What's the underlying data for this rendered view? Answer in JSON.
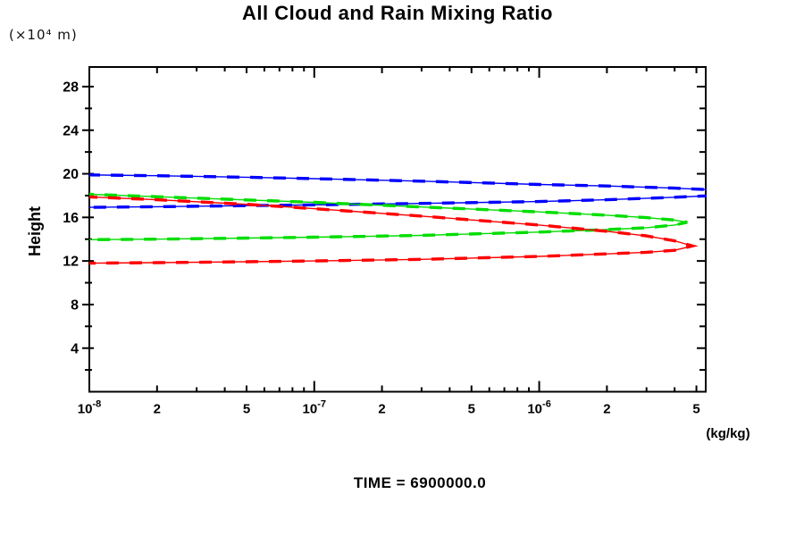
{
  "title": "All Cloud and Rain Mixing Ratio",
  "labels": {
    "y_axis_unit": "(×10⁴  m)",
    "y_axis": "Height",
    "x_axis_unit": "(kg/kg)",
    "time_caption": "TIME = 6900000.0"
  },
  "colors": {
    "background": "#ffffff",
    "axis": "#000000",
    "text": "#000000",
    "blue_series": "#0000ff",
    "green_series": "#00dd00",
    "red_series": "#ff0000"
  },
  "chart_data": {
    "type": "line",
    "title": "All Cloud and Rain Mixing Ratio",
    "xlabel": "(kg/kg)",
    "ylabel": "Height (×10⁴ m)",
    "x_scale": "log",
    "y_scale": "linear",
    "xlim": [
      1e-08,
      5.5e-06
    ],
    "ylim": [
      0,
      29.8
    ],
    "grid": false,
    "legend": "none",
    "annotation": "TIME = 6900000.0",
    "x_major_ticks": [
      {
        "v": 1e-08,
        "label": "10^-8"
      },
      {
        "v": 2e-08,
        "label": "2"
      },
      {
        "v": 5e-08,
        "label": "5"
      },
      {
        "v": 1e-07,
        "label": "10^-7"
      },
      {
        "v": 2e-07,
        "label": "2"
      },
      {
        "v": 5e-07,
        "label": "5"
      },
      {
        "v": 1e-06,
        "label": "10^-6"
      },
      {
        "v": 2e-06,
        "label": "2"
      },
      {
        "v": 5e-06,
        "label": "5"
      }
    ],
    "x_minor_ticks": [
      3e-08,
      4e-08,
      6e-08,
      7e-08,
      8e-08,
      9e-08,
      3e-07,
      4e-07,
      6e-07,
      7e-07,
      8e-07,
      9e-07,
      3e-06,
      4e-06
    ],
    "y_major_ticks": [
      {
        "v": 4,
        "label": "4"
      },
      {
        "v": 8,
        "label": "8"
      },
      {
        "v": 12,
        "label": "12"
      },
      {
        "v": 16,
        "label": "16"
      },
      {
        "v": 20,
        "label": "20"
      },
      {
        "v": 24,
        "label": "24"
      },
      {
        "v": 28,
        "label": "28"
      }
    ],
    "y_minor_ticks": [
      2,
      6,
      10,
      14,
      18,
      22,
      26
    ],
    "series": [
      {
        "name": "blue-profile",
        "color": "#0000ff",
        "points": [
          [
            1e-08,
            19.9
          ],
          [
            2e-08,
            19.82
          ],
          [
            5e-08,
            19.68
          ],
          [
            1e-07,
            19.55
          ],
          [
            3e-07,
            19.32
          ],
          [
            1e-06,
            19.02
          ],
          [
            2e-06,
            18.88
          ],
          [
            4e-06,
            18.68
          ],
          [
            5.5e-06,
            18.55
          ],
          [
            6.6e-06,
            18.2
          ],
          [
            5.5e-06,
            17.97
          ],
          [
            4e-06,
            17.85
          ],
          [
            2e-06,
            17.62
          ],
          [
            1e-06,
            17.45
          ],
          [
            3e-07,
            17.28
          ],
          [
            1e-07,
            17.15
          ],
          [
            5e-08,
            17.08
          ],
          [
            2e-08,
            16.98
          ],
          [
            1e-08,
            16.92
          ]
        ]
      },
      {
        "name": "green-profile",
        "color": "#00dd00",
        "points": [
          [
            1e-08,
            18.12
          ],
          [
            2e-08,
            17.9
          ],
          [
            5e-08,
            17.6
          ],
          [
            1e-07,
            17.38
          ],
          [
            3e-07,
            16.95
          ],
          [
            1e-06,
            16.5
          ],
          [
            2e-06,
            16.2
          ],
          [
            3e-06,
            15.98
          ],
          [
            4e-06,
            15.75
          ],
          [
            4.55e-06,
            15.55
          ],
          [
            4e-06,
            15.3
          ],
          [
            3e-06,
            15.05
          ],
          [
            2e-06,
            14.88
          ],
          [
            1e-06,
            14.65
          ],
          [
            3e-07,
            14.35
          ],
          [
            1e-07,
            14.18
          ],
          [
            5e-08,
            14.1
          ],
          [
            2e-08,
            14.0
          ],
          [
            1e-08,
            13.95
          ]
        ]
      },
      {
        "name": "red-profile",
        "color": "#ff0000",
        "points": [
          [
            1e-08,
            17.88
          ],
          [
            2e-08,
            17.62
          ],
          [
            5e-08,
            17.2
          ],
          [
            1e-07,
            16.8
          ],
          [
            3e-07,
            16.12
          ],
          [
            1e-06,
            15.3
          ],
          [
            2e-06,
            14.72
          ],
          [
            3e-06,
            14.3
          ],
          [
            4e-06,
            13.85
          ],
          [
            4.8e-06,
            13.38
          ],
          [
            4e-06,
            12.98
          ],
          [
            3e-06,
            12.8
          ],
          [
            2e-06,
            12.65
          ],
          [
            1e-06,
            12.42
          ],
          [
            3e-07,
            12.15
          ],
          [
            1e-07,
            12.0
          ],
          [
            5e-08,
            11.93
          ],
          [
            2e-08,
            11.85
          ],
          [
            1e-08,
            11.8
          ]
        ]
      }
    ]
  }
}
